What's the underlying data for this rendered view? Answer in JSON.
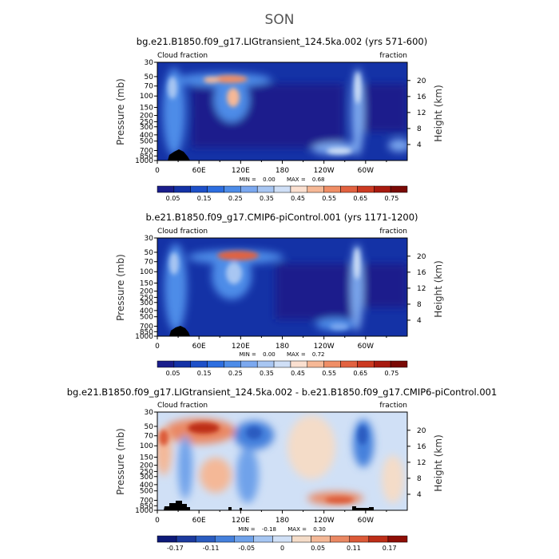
{
  "figure": {
    "main_title": "SON"
  },
  "colors": {
    "seq": [
      "#1a1e8c",
      "#1432a6",
      "#1e50c8",
      "#2d6ee0",
      "#4d8ce8",
      "#7ba8ef",
      "#a8c6f2",
      "#cfdff6",
      "#fbe0d0",
      "#f6b896",
      "#ef8e66",
      "#e26240",
      "#cc3a22",
      "#a81a10",
      "#7a0a06"
    ],
    "div": [
      "#0d1a78",
      "#1c3a9e",
      "#2a5cc0",
      "#4580dc",
      "#6fa2ea",
      "#a6c6f2",
      "#d0e0f6",
      "#f4dcc8",
      "#f4b897",
      "#ea8863",
      "#dc5a38",
      "#bd2e18",
      "#8e0e06"
    ],
    "axis": "#000000",
    "terrain": "#000000"
  },
  "panels": [
    {
      "title": "bg.e21.B1850.f09_g17.LIGtransient_124.5ka.002 (yrs 571-600)",
      "left_label": "Cloud fraction",
      "right_label": "fraction",
      "min_max": {
        "min_label": "MIN =",
        "min_value": "0.00",
        "max_label": "MAX =",
        "max_value": "0.68"
      }
    },
    {
      "title": "b.e21.B1850.f09_g17.CMIP6-piControl.001 (yrs 1171-1200)",
      "left_label": "Cloud fraction",
      "right_label": "fraction",
      "min_max": {
        "min_label": "MIN =",
        "min_value": "0.00",
        "max_label": "MAX =",
        "max_value": "0.72"
      }
    },
    {
      "title": "bg.e21.B1850.f09_g17.LIGtransient_124.5ka.002 - b.e21.B1850.f09_g17.CMIP6-piControl.001",
      "left_label": "Cloud fraction",
      "right_label": "fraction",
      "min_max": {
        "min_label": "MIN =",
        "min_value": "-0.18",
        "max_label": "MAX =",
        "max_value": "0.30"
      }
    }
  ],
  "chart_data": [
    {
      "type": "heatmap",
      "title": "bg.e21.B1850.f09_g17.LIGtransient_124.5ka.002 (yrs 571-600)",
      "ylabel": "Pressure (mb)",
      "ylabel_right": "Height (km)",
      "x_ticks": [
        "0",
        "60E",
        "120E",
        "180",
        "120W",
        "60W"
      ],
      "y_ticks": [
        "30",
        "50",
        "70",
        "100",
        "150",
        "200",
        "250",
        "300",
        "400",
        "500",
        "700",
        "850",
        "1000"
      ],
      "y_ticks_right": [
        "20",
        "16",
        "12",
        "8",
        "4"
      ],
      "colorbar_labels": [
        "0.05",
        "0.15",
        "0.25",
        "0.35",
        "0.45",
        "0.55",
        "0.65",
        "0.75"
      ],
      "min": 0.0,
      "max": 0.68
    },
    {
      "type": "heatmap",
      "title": "b.e21.B1850.f09_g17.CMIP6-piControl.001 (yrs 1171-1200)",
      "ylabel": "Pressure (mb)",
      "ylabel_right": "Height (km)",
      "x_ticks": [
        "0",
        "60E",
        "120E",
        "180",
        "120W",
        "60W"
      ],
      "y_ticks": [
        "30",
        "50",
        "70",
        "100",
        "150",
        "200",
        "250",
        "300",
        "400",
        "500",
        "700",
        "850",
        "1000"
      ],
      "y_ticks_right": [
        "20",
        "16",
        "12",
        "8",
        "4"
      ],
      "colorbar_labels": [
        "0.05",
        "0.15",
        "0.25",
        "0.35",
        "0.45",
        "0.55",
        "0.65",
        "0.75"
      ],
      "min": 0.0,
      "max": 0.72
    },
    {
      "type": "heatmap",
      "title": "bg.e21.B1850.f09_g17.LIGtransient_124.5ka.002 - b.e21.B1850.f09_g17.CMIP6-piControl.001",
      "ylabel": "Pressure (mb)",
      "ylabel_right": "Height (km)",
      "x_ticks": [
        "0",
        "60E",
        "120E",
        "180",
        "120W",
        "60W"
      ],
      "y_ticks": [
        "30",
        "50",
        "70",
        "100",
        "150",
        "200",
        "250",
        "300",
        "400",
        "500",
        "700",
        "850",
        "1000"
      ],
      "y_ticks_right": [
        "20",
        "16",
        "12",
        "8",
        "4"
      ],
      "colorbar_labels": [
        "-0.17",
        "-0.11",
        "-0.05",
        "0",
        "0.05",
        "0.11",
        "0.17"
      ],
      "min": -0.18,
      "max": 0.3
    }
  ]
}
